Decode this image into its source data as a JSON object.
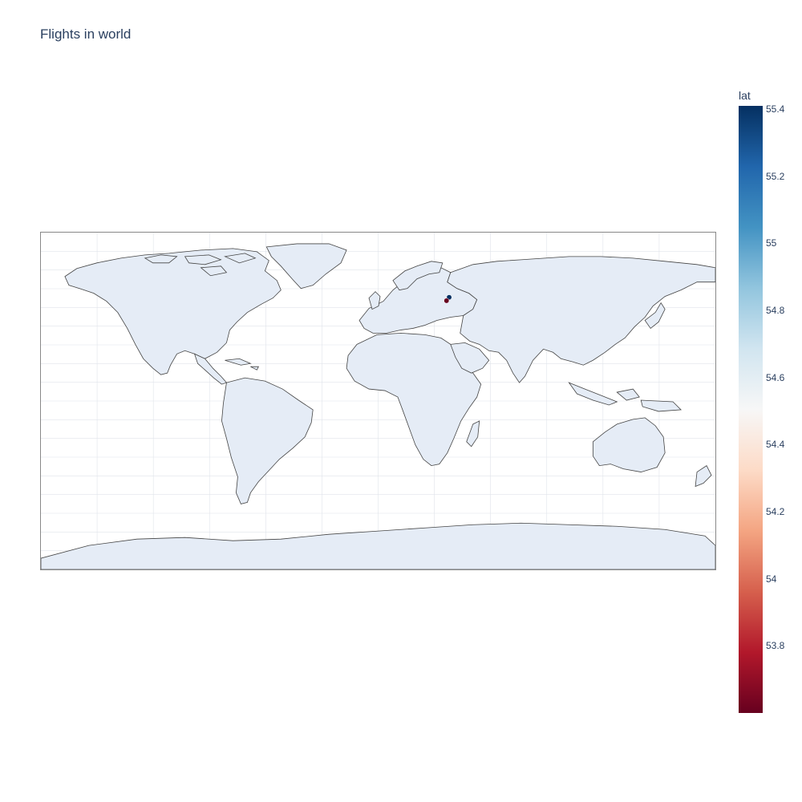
{
  "title": "Flights in world",
  "map": {
    "land_color": "#e5ecf6",
    "coast_color": "#444444",
    "grid_color": "#e0e4ea",
    "frame_color": "#888888",
    "points": [
      {
        "lat": 55.41,
        "lon": 37.9
      },
      {
        "lat": 53.6,
        "lon": 36.5
      }
    ]
  },
  "colorbar": {
    "title": "lat",
    "min": 53.6,
    "max": 55.41,
    "ticks": [
      "55.4",
      "55.2",
      "55",
      "54.8",
      "54.6",
      "54.4",
      "54.2",
      "54",
      "53.8"
    ],
    "tick_values": [
      55.4,
      55.2,
      55.0,
      54.8,
      54.6,
      54.4,
      54.2,
      54.0,
      53.8
    ],
    "colorscale": [
      "#67001f",
      "#b2182b",
      "#d6604d",
      "#f4a582",
      "#fddbc7",
      "#f7f7f7",
      "#d1e5f0",
      "#92c5de",
      "#4393c3",
      "#2166ac",
      "#053061"
    ]
  }
}
